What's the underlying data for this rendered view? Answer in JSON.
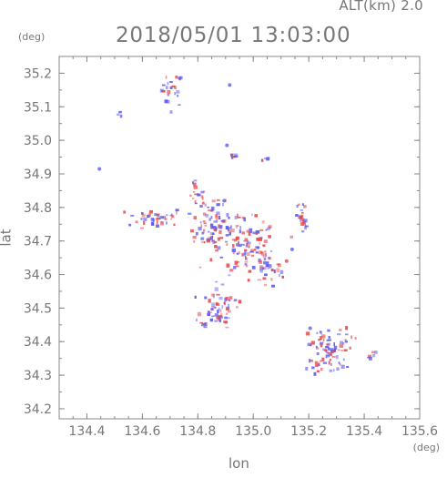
{
  "header": {
    "altitude_label": "ALT(km) 2.0",
    "timestamp": "2018/05/01 13:03:00"
  },
  "axes": {
    "y_unit": "(deg)",
    "x_unit": "(deg)",
    "x_label": "lon",
    "y_label": "lat"
  },
  "colors": {
    "positive": "#e8474a",
    "negative": "#5b5bf0",
    "axis": "#888888",
    "text": "#777777"
  },
  "chart_data": {
    "type": "scatter",
    "title": "2018/05/01 13:03:00",
    "xlabel": "lon",
    "ylabel": "lat",
    "xlim": [
      134.3,
      135.6
    ],
    "ylim": [
      34.17,
      35.25
    ],
    "x_ticks": [
      134.4,
      134.6,
      134.8,
      135.0,
      135.2,
      135.4,
      135.6
    ],
    "x_tick_labels": [
      "134.4",
      "134.6",
      "134.8",
      "135.0",
      "135.2",
      "135.4",
      "135.6"
    ],
    "y_ticks": [
      34.2,
      34.3,
      34.4,
      34.5,
      34.6,
      34.7,
      34.8,
      34.9,
      35.0,
      35.1,
      35.2
    ],
    "y_tick_labels": [
      "34.2",
      "34.3",
      "34.4",
      "34.5",
      "34.6",
      "34.7",
      "34.8",
      "34.9",
      "35.0",
      "35.1",
      "35.2"
    ],
    "grid": false,
    "clusters": [
      {
        "x": 134.71,
        "y": 35.15,
        "sx": 0.02,
        "sy": 0.025,
        "n": 22,
        "pos": 0.35
      },
      {
        "x": 134.52,
        "y": 35.08,
        "sx": 0.005,
        "sy": 0.004,
        "n": 3,
        "pos": 0.1
      },
      {
        "x": 134.93,
        "y": 34.955,
        "sx": 0.01,
        "sy": 0.004,
        "n": 6,
        "pos": 0.2
      },
      {
        "x": 135.04,
        "y": 34.945,
        "sx": 0.008,
        "sy": 0.004,
        "n": 4,
        "pos": 0.3
      },
      {
        "x": 134.8,
        "y": 34.83,
        "sx": 0.015,
        "sy": 0.02,
        "n": 18,
        "pos": 0.75
      },
      {
        "x": 134.65,
        "y": 34.77,
        "sx": 0.05,
        "sy": 0.015,
        "n": 40,
        "pos": 0.45
      },
      {
        "x": 134.86,
        "y": 34.74,
        "sx": 0.05,
        "sy": 0.035,
        "n": 90,
        "pos": 0.55
      },
      {
        "x": 134.98,
        "y": 34.68,
        "sx": 0.05,
        "sy": 0.04,
        "n": 95,
        "pos": 0.5
      },
      {
        "x": 135.05,
        "y": 34.62,
        "sx": 0.03,
        "sy": 0.03,
        "n": 30,
        "pos": 0.55
      },
      {
        "x": 135.18,
        "y": 34.755,
        "sx": 0.015,
        "sy": 0.02,
        "n": 16,
        "pos": 0.55
      },
      {
        "x": 134.87,
        "y": 34.5,
        "sx": 0.03,
        "sy": 0.03,
        "n": 60,
        "pos": 0.45
      },
      {
        "x": 134.82,
        "y": 34.45,
        "sx": 0.006,
        "sy": 0.004,
        "n": 3,
        "pos": 0.3
      },
      {
        "x": 135.28,
        "y": 34.38,
        "sx": 0.04,
        "sy": 0.03,
        "n": 65,
        "pos": 0.45
      },
      {
        "x": 135.24,
        "y": 34.33,
        "sx": 0.03,
        "sy": 0.012,
        "n": 20,
        "pos": 0.5
      },
      {
        "x": 135.43,
        "y": 34.36,
        "sx": 0.012,
        "sy": 0.005,
        "n": 6,
        "pos": 0.15
      },
      {
        "x": 135.17,
        "y": 34.8,
        "sx": 0.01,
        "sy": 0.01,
        "n": 6,
        "pos": 0.3
      }
    ],
    "isolated_points": [
      {
        "x": 134.735,
        "y": 35.185,
        "v": "negative"
      },
      {
        "x": 134.915,
        "y": 35.165,
        "v": "negative"
      },
      {
        "x": 134.445,
        "y": 34.915,
        "v": "negative"
      },
      {
        "x": 134.905,
        "y": 34.985,
        "v": "negative"
      },
      {
        "x": 134.895,
        "y": 34.82,
        "v": "negative"
      },
      {
        "x": 135.12,
        "y": 34.64,
        "v": "positive"
      },
      {
        "x": 135.14,
        "y": 34.675,
        "v": "negative"
      },
      {
        "x": 135.205,
        "y": 34.44,
        "v": "negative"
      }
    ]
  }
}
